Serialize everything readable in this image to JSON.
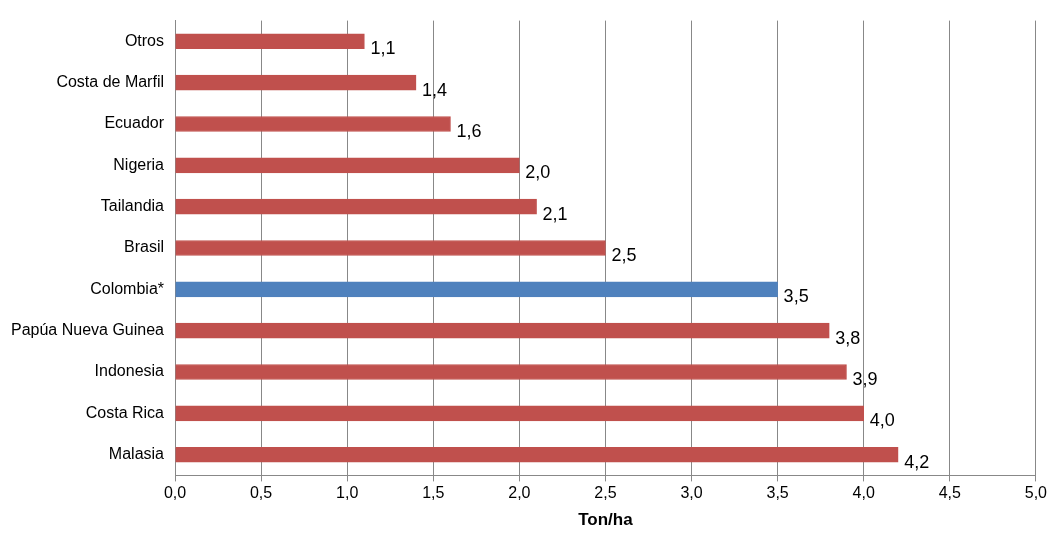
{
  "chart_data": {
    "type": "bar",
    "orientation": "horizontal",
    "xlabel": "Ton/ha",
    "categories": [
      "Otros",
      "Costa de Marfil",
      "Ecuador",
      "Nigeria",
      "Tailandia",
      "Brasil",
      "Colombia*",
      "Papúa Nueva Guinea",
      "Indonesia",
      "Costa Rica",
      "Malasia"
    ],
    "values": [
      1.1,
      1.4,
      1.6,
      2.0,
      2.1,
      2.5,
      3.5,
      3.8,
      3.9,
      4.0,
      4.2
    ],
    "colors": [
      "#c0504d",
      "#c0504d",
      "#c0504d",
      "#c0504d",
      "#c0504d",
      "#c0504d",
      "#4f81bd",
      "#c0504d",
      "#c0504d",
      "#c0504d",
      "#c0504d"
    ],
    "value_labels": [
      "1,1",
      "1,4",
      "1,6",
      "2,0",
      "2,1",
      "2,5",
      "3,5",
      "3,8",
      "3,9",
      "4,0",
      "4,2"
    ],
    "xlim": [
      0,
      5
    ],
    "xticks": [
      {
        "value": 0,
        "label": "0,0"
      },
      {
        "value": 0.5,
        "label": "0,5"
      },
      {
        "value": 1,
        "label": "1,0"
      },
      {
        "value": 1.5,
        "label": "1,5"
      },
      {
        "value": 2,
        "label": "2,0"
      },
      {
        "value": 2.5,
        "label": "2,5"
      },
      {
        "value": 3,
        "label": "3,0"
      },
      {
        "value": 3.5,
        "label": "3,5"
      },
      {
        "value": 4,
        "label": "4,0"
      },
      {
        "value": 4.5,
        "label": "4,5"
      },
      {
        "value": 5,
        "label": "5,0"
      }
    ],
    "grid": "x",
    "legend": false
  }
}
